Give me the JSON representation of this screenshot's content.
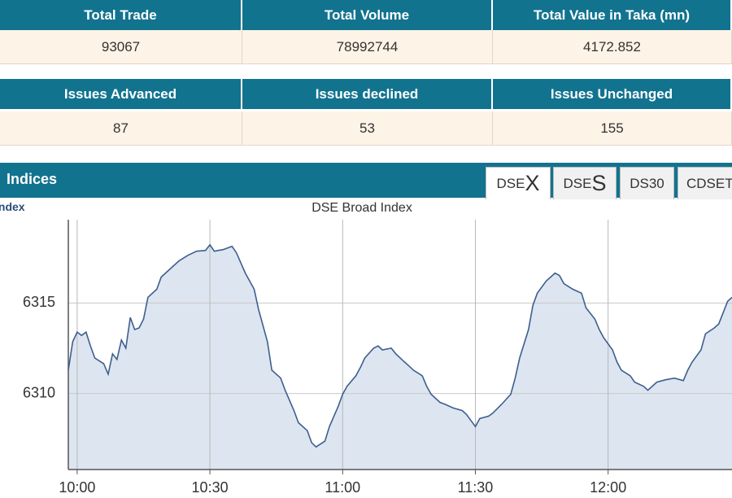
{
  "stats": {
    "headers": [
      "Total Trade",
      "Total Volume",
      "Total Value in Taka (mn)"
    ],
    "values": [
      93067,
      78992744,
      4172.852
    ]
  },
  "issues": {
    "headers": [
      "Issues Advanced",
      "Issues declined",
      "Issues Unchanged"
    ],
    "values": [
      87,
      53,
      155
    ]
  },
  "panel": {
    "title": "Indices",
    "link": "Index",
    "tabs": [
      "DSEX",
      "DSES",
      "DS30",
      "CDSET"
    ]
  },
  "chart_data": {
    "type": "area",
    "title": "DSE Broad Index",
    "color": "#3d5f8f",
    "fill": "#dde5f0",
    "grid": true,
    "x": [
      "09:58",
      "09:59",
      "10:00",
      "10:01",
      "10:02",
      "10:03",
      "10:04",
      "10:06",
      "10:07",
      "10:08",
      "10:09",
      "10:10",
      "10:11",
      "10:12",
      "10:13",
      "10:14",
      "10:15",
      "10:16",
      "10:18",
      "10:19",
      "10:21",
      "10:23",
      "10:25",
      "10:27",
      "10:29",
      "10:30",
      "10:31",
      "10:33",
      "10:35",
      "10:36",
      "10:38",
      "10:40",
      "10:41",
      "10:43",
      "10:44",
      "10:46",
      "10:47",
      "10:49",
      "10:50",
      "10:52",
      "10:53",
      "10:54",
      "10:56",
      "10:57",
      "10:59",
      "11:00",
      "11:01",
      "11:03",
      "11:04",
      "11:05",
      "11:07",
      "11:08",
      "11:09",
      "11:11",
      "11:12",
      "11:14",
      "11:15",
      "11:16",
      "11:18",
      "11:19",
      "11:20",
      "11:22",
      "11:23",
      "11:25",
      "11:27",
      "11:28",
      "11:30",
      "11:31",
      "11:33",
      "11:34",
      "11:36",
      "11:38",
      "11:39",
      "11:40",
      "11:42",
      "11:43",
      "11:44",
      "11:46",
      "11:48",
      "11:49",
      "11:50",
      "11:52",
      "11:54",
      "11:55",
      "11:57",
      "11:58",
      "11:59",
      "12:01",
      "12:02",
      "12:03",
      "12:05",
      "12:06",
      "12:08",
      "12:09",
      "12:11",
      "12:13",
      "12:15",
      "12:17",
      "12:18",
      "12:19",
      "12:21",
      "12:22",
      "12:24",
      "12:25",
      "12:27",
      "12:28"
    ],
    "values": [
      6311.29,
      6312.86,
      6313.39,
      6313.21,
      6313.39,
      6312.63,
      6311.96,
      6311.65,
      6311.07,
      6312.19,
      6311.88,
      6312.95,
      6312.5,
      6314.2,
      6313.53,
      6313.62,
      6314.11,
      6315.31,
      6315.76,
      6316.43,
      6316.88,
      6317.32,
      6317.63,
      6317.86,
      6317.9,
      6318.21,
      6317.86,
      6317.95,
      6318.13,
      6317.77,
      6316.65,
      6315.76,
      6314.64,
      6312.86,
      6311.29,
      6310.85,
      6310.18,
      6309.06,
      6308.39,
      6307.95,
      6307.28,
      6307.05,
      6307.37,
      6308.17,
      6309.29,
      6309.96,
      6310.4,
      6310.98,
      6311.43,
      6311.96,
      6312.5,
      6312.63,
      6312.41,
      6312.5,
      6312.19,
      6311.74,
      6311.52,
      6311.29,
      6310.98,
      6310.4,
      6309.96,
      6309.51,
      6309.42,
      6309.2,
      6309.06,
      6308.84,
      6308.17,
      6308.62,
      6308.75,
      6308.93,
      6309.42,
      6309.96,
      6310.85,
      6311.96,
      6313.53,
      6314.87,
      6315.54,
      6316.21,
      6316.65,
      6316.52,
      6316.07,
      6315.76,
      6315.54,
      6314.73,
      6314.11,
      6313.53,
      6313.08,
      6312.41,
      6311.74,
      6311.29,
      6310.98,
      6310.63,
      6310.4,
      6310.18,
      6310.63,
      6310.76,
      6310.85,
      6310.71,
      6311.29,
      6311.74,
      6312.41,
      6313.3,
      6313.62,
      6313.84,
      6315.09,
      6315.31
    ],
    "xlim": [
      "09:58",
      "12:28"
    ],
    "xticks": [
      "10:00",
      "10:30",
      "11:00",
      "11:30",
      "12:00"
    ],
    "ylim": [
      6305.8,
      6319.6
    ],
    "yticks": [
      6310,
      6315
    ]
  }
}
